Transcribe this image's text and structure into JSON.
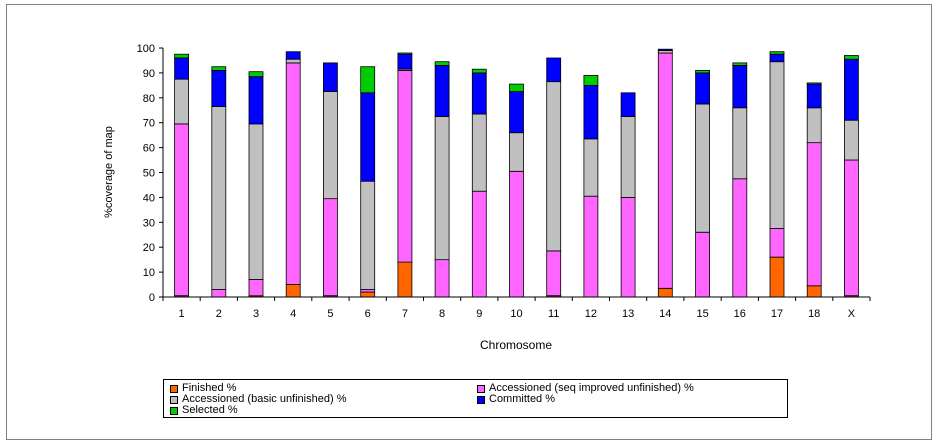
{
  "chart_data": {
    "type": "bar",
    "stacked": true,
    "xlabel": "Chromosome",
    "ylabel": "%coverage of map",
    "ylim": [
      0,
      100
    ],
    "yticks": [
      0,
      10,
      20,
      30,
      40,
      50,
      60,
      70,
      80,
      90,
      100
    ],
    "grid": false,
    "legend_position": "bottom",
    "categories": [
      "1",
      "2",
      "3",
      "4",
      "5",
      "6",
      "7",
      "8",
      "9",
      "10",
      "11",
      "12",
      "13",
      "14",
      "15",
      "16",
      "17",
      "18",
      "X"
    ],
    "series": [
      {
        "name": "Finished %",
        "color": "#ff6600",
        "values": [
          0.5,
          0,
          0.5,
          5,
          0.5,
          2,
          14,
          0,
          0,
          0,
          0.5,
          0,
          0,
          3.5,
          0,
          0,
          16,
          4.5,
          0.5
        ]
      },
      {
        "name": "Accessioned (seq improved unfinished) %",
        "color": "#ff66ff",
        "values": [
          69,
          3,
          6.5,
          89,
          39,
          1,
          77,
          15,
          42.5,
          50.5,
          18,
          40.5,
          40,
          94.5,
          26,
          47.5,
          11.5,
          57.5,
          54.5
        ]
      },
      {
        "name": "Accessioned (basic unfinished) %",
        "color": "#c0c0c0",
        "values": [
          18,
          73.5,
          62.5,
          1.5,
          43,
          43.5,
          0.5,
          57.5,
          31,
          15.5,
          68,
          23,
          32.5,
          1,
          51.5,
          28.5,
          67,
          14,
          16
        ]
      },
      {
        "name": "Committed %",
        "color": "#0000ff",
        "values": [
          8.5,
          14.5,
          19,
          3,
          11.5,
          35.5,
          6,
          20.5,
          16.5,
          16.5,
          9.5,
          21.5,
          9.5,
          0.5,
          12.5,
          17,
          3,
          9.5,
          24.5
        ]
      },
      {
        "name": "Selected %",
        "color": "#00cc00",
        "values": [
          1.5,
          1.5,
          2,
          0,
          0,
          10.5,
          0.5,
          1.5,
          1.5,
          3,
          0,
          4,
          0,
          0,
          1,
          1,
          1,
          0.5,
          1.5
        ]
      }
    ]
  },
  "legend": {
    "finished": "Finished %",
    "seq_improved": "Accessioned (seq improved unfinished) %",
    "basic_unfinished": "Accessioned (basic unfinished) %",
    "committed": "Committed %",
    "selected": "Selected %"
  }
}
